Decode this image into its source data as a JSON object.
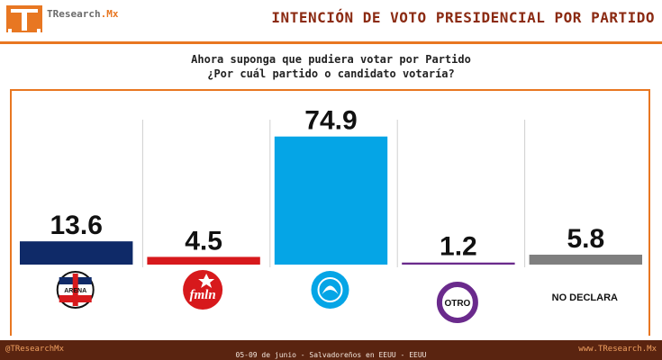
{
  "header": {
    "brand_prefix": "TResearch",
    "brand_suffix": ".Mx",
    "title": "INTENCIÓN DE VOTO PRESIDENCIAL POR PARTIDO"
  },
  "question": {
    "line1": "Ahora suponga que pudiera votar por Partido",
    "line2": "¿Por cuál  partido o candidato votaría?"
  },
  "chart_data": {
    "type": "bar",
    "categories": [
      "ARENA",
      "FMLN",
      "NUEVAS IDEAS",
      "OTRO",
      "NO DECLARA"
    ],
    "values": [
      13.6,
      4.5,
      74.9,
      1.2,
      5.8
    ],
    "value_labels": [
      "13.6",
      "4.5",
      "74.9",
      "1.2",
      "5.8"
    ],
    "colors": [
      "#0f2a68",
      "#d7191c",
      "#05a5e6",
      "#6a2a8c",
      "#7f7f7f"
    ],
    "category_labels": {
      "arena_logo": "ARENA",
      "fmln_logo": "fmln",
      "otro_badge": "OTRO",
      "no_declara": "NO DECLARA"
    },
    "ylim": [
      0,
      80
    ],
    "grid": false,
    "legend": "none"
  },
  "footer": {
    "left": "@TResearchMx",
    "center": "05-09 de junio  - Salvadoreños en EEUU - EEUU",
    "right": "www.TResearch.Mx"
  }
}
